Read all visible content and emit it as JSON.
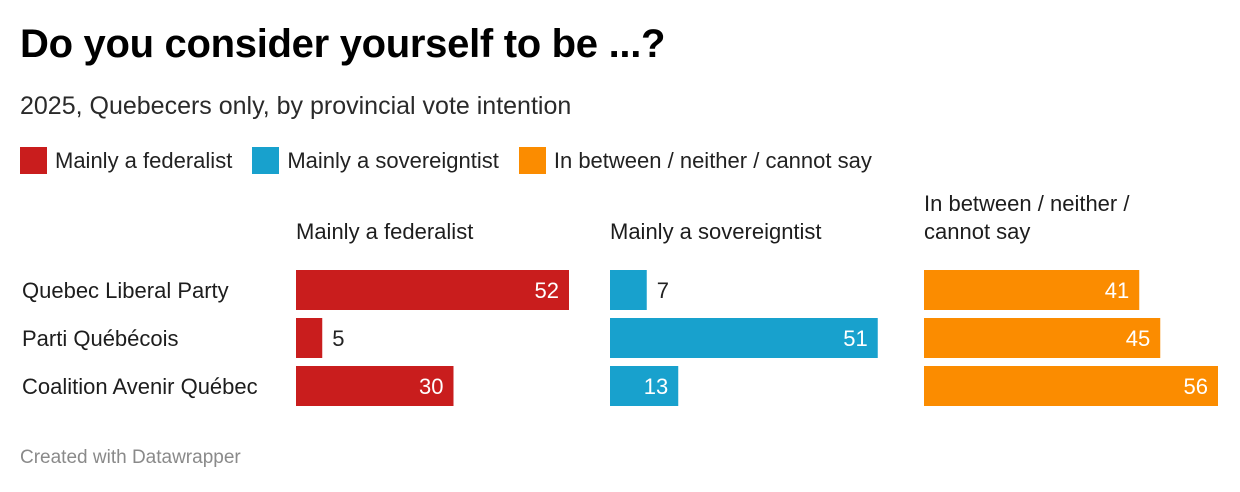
{
  "chart_data": {
    "type": "bar",
    "title": "Do you consider yourself to be ...?",
    "subtitle": "2025, Quebecers only, by provincial vote intention",
    "categories": [
      "Quebec Liberal Party",
      "Parti Québécois",
      "Coalition Avenir Québec"
    ],
    "series": [
      {
        "name": "Mainly a federalist",
        "header": [
          "Mainly a federalist"
        ],
        "color": "#c91d1d",
        "values": [
          52,
          5,
          30
        ]
      },
      {
        "name": "Mainly a sovereigntist",
        "header": [
          "Mainly a sovereigntist"
        ],
        "color": "#18a1cd",
        "values": [
          7,
          51,
          13
        ]
      },
      {
        "name": "In between / neither / cannot say",
        "header": [
          "In between / neither /",
          "cannot say"
        ],
        "color": "#fb8c00",
        "values": [
          41,
          45,
          56
        ]
      }
    ],
    "xlim": [
      0,
      56
    ],
    "grid": false,
    "legend_position": "top-left",
    "label_color_inside": "#ffffff",
    "label_color_outside": "#222222"
  },
  "footer": {
    "credit": "Created with Datawrapper"
  }
}
